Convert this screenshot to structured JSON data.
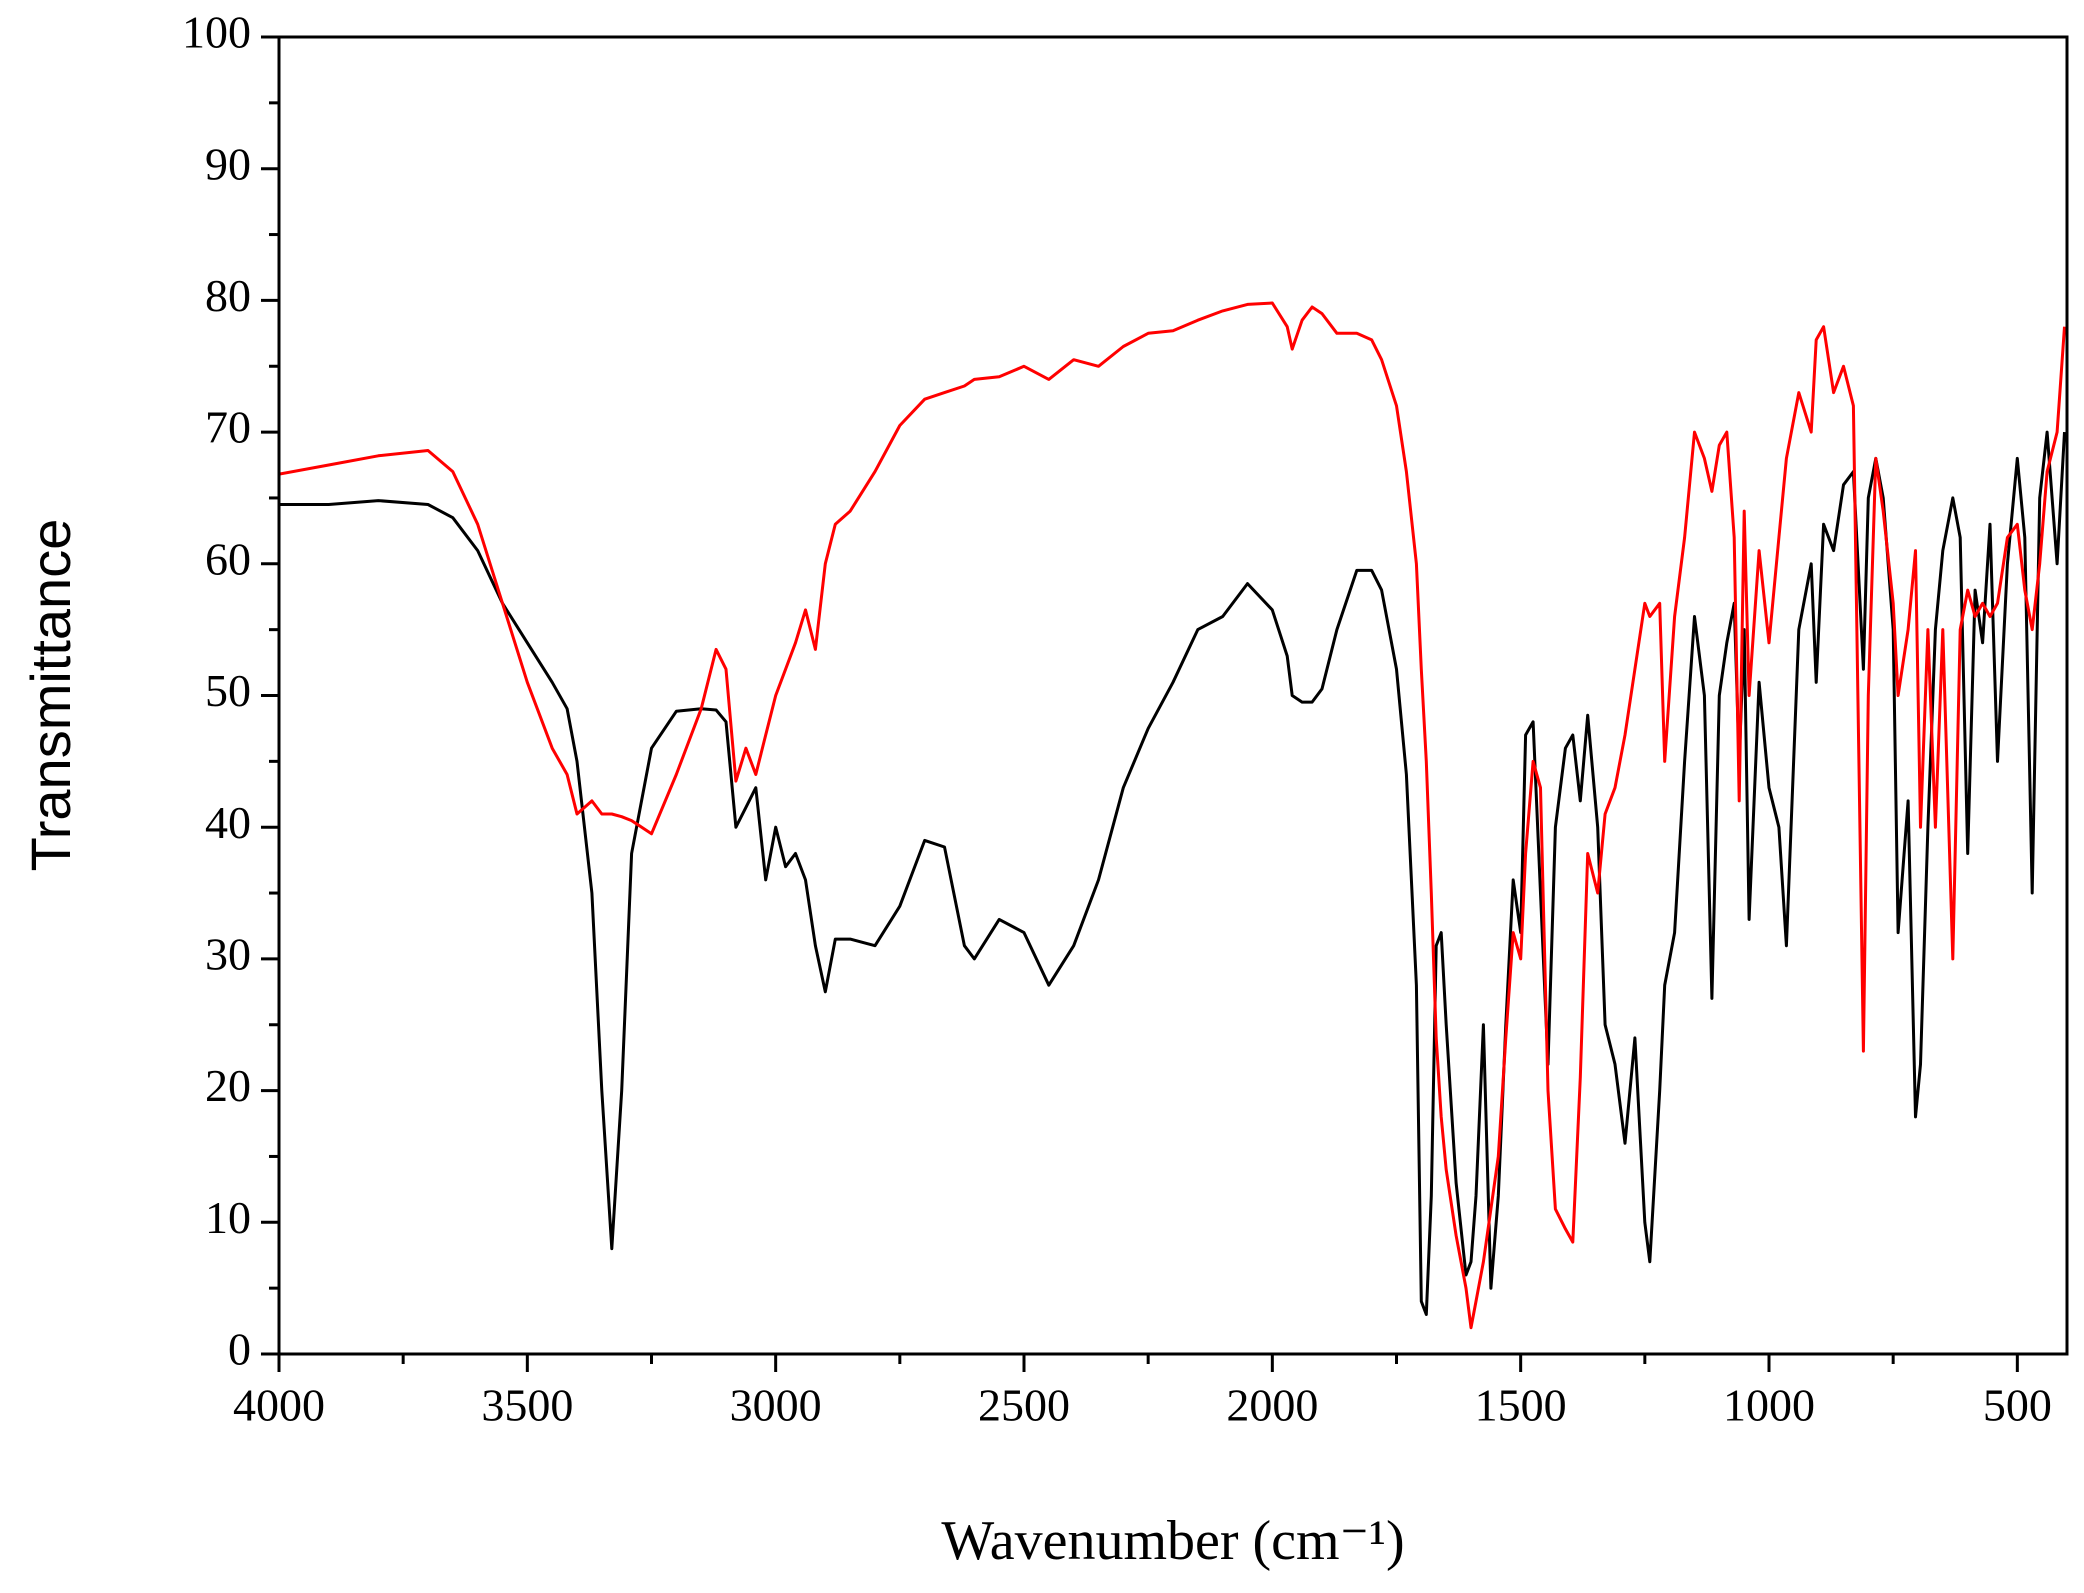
{
  "chart_data": {
    "type": "line",
    "xlabel": "Wavenumber (cm⁻¹)",
    "ylabel": "Transmittance",
    "xlim": [
      4000,
      400
    ],
    "ylim": [
      0,
      100
    ],
    "xticks": [
      4000,
      3500,
      3000,
      2500,
      2000,
      1500,
      1000,
      500
    ],
    "xminorticks": [
      3750,
      3250,
      2750,
      2250,
      1750,
      1250,
      750
    ],
    "yticks": [
      0,
      10,
      20,
      30,
      40,
      50,
      60,
      70,
      80,
      90,
      100
    ],
    "yminorticks": [
      5,
      15,
      25,
      35,
      45,
      55,
      65,
      75,
      85,
      95
    ],
    "grid": false,
    "x": [
      4000,
      3900,
      3800,
      3700,
      3650,
      3600,
      3550,
      3500,
      3450,
      3420,
      3400,
      3370,
      3350,
      3330,
      3310,
      3290,
      3250,
      3200,
      3150,
      3120,
      3100,
      3080,
      3060,
      3040,
      3020,
      3000,
      2980,
      2960,
      2940,
      2920,
      2900,
      2880,
      2850,
      2800,
      2750,
      2700,
      2660,
      2620,
      2600,
      2550,
      2500,
      2450,
      2400,
      2350,
      2300,
      2250,
      2200,
      2150,
      2100,
      2050,
      2000,
      1970,
      1960,
      1940,
      1920,
      1900,
      1870,
      1830,
      1800,
      1780,
      1750,
      1730,
      1710,
      1700,
      1690,
      1680,
      1670,
      1660,
      1650,
      1630,
      1610,
      1600,
      1590,
      1575,
      1560,
      1545,
      1530,
      1515,
      1500,
      1490,
      1475,
      1460,
      1445,
      1430,
      1410,
      1395,
      1380,
      1365,
      1345,
      1330,
      1310,
      1290,
      1270,
      1250,
      1240,
      1220,
      1210,
      1190,
      1170,
      1150,
      1130,
      1115,
      1100,
      1085,
      1070,
      1060,
      1050,
      1040,
      1020,
      1000,
      980,
      965,
      940,
      915,
      905,
      890,
      870,
      850,
      830,
      810,
      800,
      785,
      770,
      750,
      740,
      720,
      705,
      695,
      680,
      665,
      650,
      630,
      615,
      600,
      585,
      570,
      555,
      540,
      520,
      500,
      485,
      470,
      455,
      440,
      420,
      405
    ],
    "series": [
      {
        "color": "#000000",
        "values": [
          64.5,
          64.5,
          64.8,
          64.5,
          63.5,
          61,
          57,
          54,
          51,
          49,
          45,
          35,
          20,
          8,
          20,
          38,
          46,
          48.8,
          49,
          48.9,
          48,
          40,
          41.5,
          43,
          36,
          40,
          37,
          38,
          36,
          31,
          27.5,
          31.5,
          31.5,
          31,
          34,
          39,
          38.5,
          31,
          30,
          33,
          32,
          28,
          31,
          36,
          43,
          47.5,
          51,
          55,
          56,
          58.5,
          56.5,
          53,
          50,
          49.5,
          49.5,
          50.5,
          55,
          59.5,
          59.5,
          58,
          52,
          44,
          28,
          4,
          3,
          12,
          31,
          32,
          25,
          13,
          6,
          7,
          12,
          25,
          5,
          12,
          25,
          36,
          32,
          47,
          48,
          35,
          22,
          40,
          46,
          47,
          42,
          48.5,
          40,
          25,
          22,
          16,
          24,
          10,
          7,
          20,
          28,
          32,
          45,
          56,
          50,
          27,
          50,
          54,
          57,
          45,
          55,
          33,
          51,
          43,
          40,
          31,
          55,
          60,
          51,
          63,
          61,
          66,
          67,
          52,
          65,
          68,
          65,
          55,
          32,
          42,
          18,
          22,
          40,
          55,
          61,
          65,
          62,
          38,
          58,
          54,
          63,
          45,
          60,
          68,
          62,
          35,
          65,
          70,
          60,
          70
        ]
      },
      {
        "color": "#ff0000",
        "values": [
          66.8,
          67.5,
          68.2,
          68.6,
          67,
          63,
          57,
          51,
          46,
          44,
          41,
          42,
          41,
          41,
          40.8,
          40.5,
          39.5,
          44,
          49,
          53.5,
          52,
          43.5,
          46,
          44,
          47,
          50,
          52,
          54,
          56.5,
          53.5,
          60,
          63,
          64,
          67,
          70.5,
          72.5,
          73,
          73.5,
          74,
          74.2,
          75,
          74,
          75.5,
          75,
          76.5,
          77.5,
          77.7,
          78.5,
          79.2,
          79.7,
          79.8,
          78,
          76.3,
          78.5,
          79.5,
          79,
          77.5,
          77.5,
          77,
          75.5,
          72,
          67,
          60,
          52,
          45,
          35,
          24,
          18,
          14,
          9,
          5,
          2,
          4,
          7,
          11,
          15,
          24,
          32,
          30,
          38,
          45,
          43,
          20,
          11,
          9.5,
          8.5,
          21,
          38,
          35,
          41,
          43,
          47,
          52,
          57,
          56,
          57,
          45,
          56,
          62,
          70,
          68,
          65.5,
          69,
          70,
          62,
          42,
          64,
          50,
          61,
          54,
          62,
          68,
          73,
          70,
          77,
          78,
          73,
          75,
          72,
          23,
          50,
          68,
          64,
          57,
          50,
          55,
          61,
          40,
          55,
          40,
          55,
          30,
          55,
          58,
          56,
          57,
          56,
          57,
          62,
          63,
          58,
          55,
          60,
          67,
          70,
          78
        ]
      }
    ]
  }
}
